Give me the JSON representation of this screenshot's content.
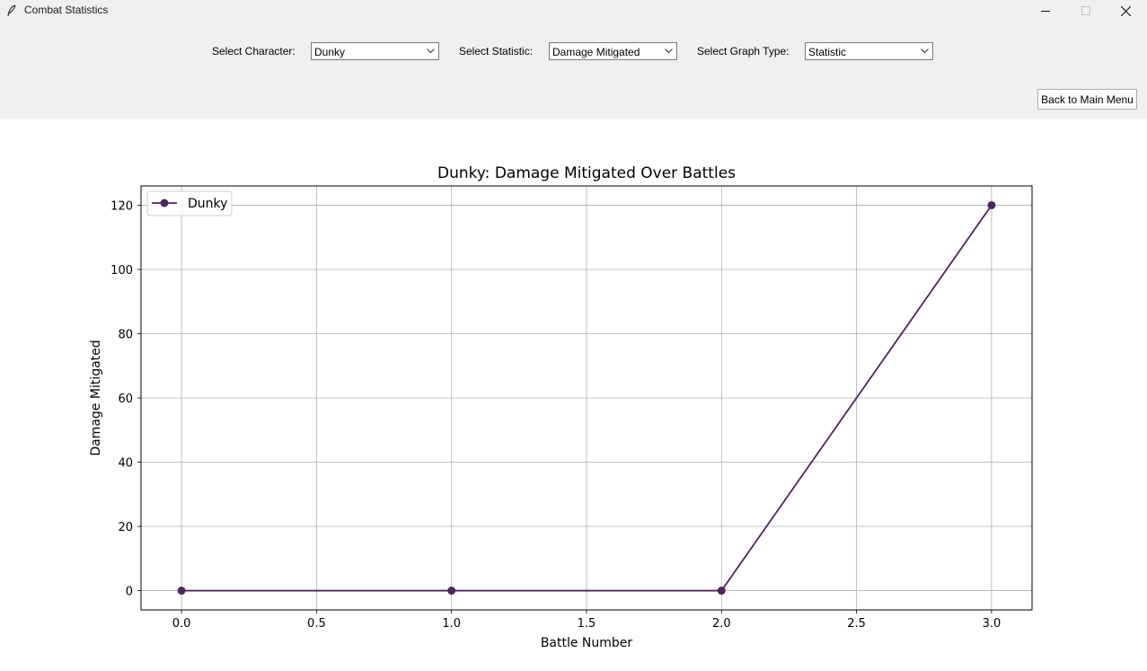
{
  "window": {
    "title": "Combat Statistics",
    "icons": {
      "app": "feather-icon",
      "minimize": "minimize-icon",
      "maximize": "maximize-icon",
      "close": "close-icon"
    }
  },
  "controls": {
    "character_label": "Select Character:",
    "character_value": "Dunky",
    "statistic_label": "Select Statistic:",
    "statistic_value": "Damage Mitigated",
    "graph_type_label": "Select Graph Type:",
    "graph_type_value": "Statistic",
    "back_button": "Back to Main Menu"
  },
  "chart_data": {
    "type": "line",
    "title": "Dunky: Damage Mitigated Over Battles",
    "xlabel": "Battle Number",
    "ylabel": "Damage Mitigated",
    "xlim": [
      -0.15,
      3.15
    ],
    "ylim": [
      -6,
      126
    ],
    "xticks": [
      0.0,
      0.5,
      1.0,
      1.5,
      2.0,
      2.5,
      3.0
    ],
    "xtick_labels": [
      "0.0",
      "0.5",
      "1.0",
      "1.5",
      "2.0",
      "2.5",
      "3.0"
    ],
    "yticks": [
      0,
      20,
      40,
      60,
      80,
      100,
      120
    ],
    "ytick_labels": [
      "0",
      "20",
      "40",
      "60",
      "80",
      "100",
      "120"
    ],
    "grid": true,
    "legend_position": "top-left",
    "series": [
      {
        "name": "Dunky",
        "color": "#4f2560",
        "marker": "circle",
        "x": [
          0,
          1,
          2,
          3
        ],
        "y": [
          0,
          0,
          0,
          120
        ]
      }
    ]
  }
}
